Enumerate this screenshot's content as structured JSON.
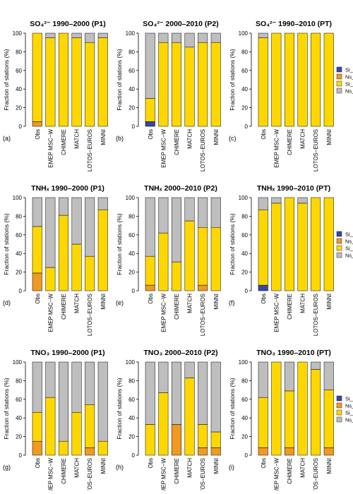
{
  "colors": {
    "Si_In": "#3747a8",
    "Ns_In": "#f09a22",
    "Si_De": "#ffd700",
    "Ns_De": "#bebebe"
  },
  "chart_data": [
    {
      "type": "bar",
      "stacked": true,
      "panel_label": "(a)",
      "title": "SO₄²⁻ 1990–2000 (P1)",
      "ylabel": "Fraction of stations (%)",
      "ylim": [
        0,
        100
      ],
      "yticks": [
        "0",
        "20",
        "40",
        "60",
        "80",
        "100"
      ],
      "categories": [
        "Obs",
        "EMEP MSC−W",
        "CHIMERE",
        "MATCH",
        "LOTOS−EUROS",
        "MINNI"
      ],
      "series": [
        {
          "name": "Si_In",
          "values": [
            0,
            0,
            0,
            0,
            0,
            0
          ]
        },
        {
          "name": "Ns_In",
          "values": [
            5,
            0,
            0,
            0,
            0,
            0
          ]
        },
        {
          "name": "Si_De",
          "values": [
            95,
            95,
            100,
            95,
            90,
            95
          ]
        },
        {
          "name": "Ns_De",
          "values": [
            0,
            5,
            0,
            5,
            10,
            5
          ]
        }
      ]
    },
    {
      "type": "bar",
      "stacked": true,
      "panel_label": "(b)",
      "title": "SO₄²⁻ 2000–2010 (P2)",
      "ylabel": "Fraction of stations (%)",
      "ylim": [
        0,
        100
      ],
      "yticks": [
        "0",
        "20",
        "40",
        "60",
        "80",
        "100"
      ],
      "categories": [
        "Obs",
        "EMEP MSC−W",
        "CHIMERE",
        "MATCH",
        "LOTOS−EUROS",
        "MINNI"
      ],
      "series": [
        {
          "name": "Si_In",
          "values": [
            5,
            0,
            0,
            0,
            0,
            0
          ]
        },
        {
          "name": "Ns_In",
          "values": [
            0,
            0,
            0,
            0,
            0,
            0
          ]
        },
        {
          "name": "Si_De",
          "values": [
            25,
            90,
            90,
            85,
            90,
            90
          ]
        },
        {
          "name": "Ns_De",
          "values": [
            70,
            10,
            10,
            15,
            10,
            10
          ]
        }
      ]
    },
    {
      "type": "bar",
      "stacked": true,
      "panel_label": "(c)",
      "title": "SO₄²⁻ 1990–2010 (PT)",
      "ylabel": "Fraction of stations (%)",
      "ylim": [
        0,
        100
      ],
      "yticks": [
        "0",
        "20",
        "40",
        "60",
        "80",
        "100"
      ],
      "categories": [
        "Obs",
        "EMEP MSC−W",
        "CHIMERE",
        "MATCH",
        "LOTOS−EUROS",
        "MINNI"
      ],
      "legend": [
        "Si_In",
        "Ns_In",
        "Si_De",
        "Ns_De"
      ],
      "series": [
        {
          "name": "Si_In",
          "values": [
            0,
            0,
            0,
            0,
            0,
            0
          ]
        },
        {
          "name": "Ns_In",
          "values": [
            0,
            0,
            0,
            0,
            0,
            0
          ]
        },
        {
          "name": "Si_De",
          "values": [
            95,
            100,
            100,
            100,
            100,
            100
          ]
        },
        {
          "name": "Ns_De",
          "values": [
            5,
            0,
            0,
            0,
            0,
            0
          ]
        }
      ]
    },
    {
      "type": "bar",
      "stacked": true,
      "panel_label": "(d)",
      "title": "TNHₓ 1990–2000 (P1)",
      "ylabel": "Fraction of stations (%)",
      "ylim": [
        0,
        100
      ],
      "yticks": [
        "0",
        "20",
        "40",
        "60",
        "80",
        "100"
      ],
      "categories": [
        "Obs",
        "EMEP MSC−W",
        "CHIMERE",
        "MATCH",
        "LOTOS−EUROS",
        "MINNI"
      ],
      "series": [
        {
          "name": "Si_In",
          "values": [
            0,
            0,
            0,
            0,
            0,
            0
          ]
        },
        {
          "name": "Ns_In",
          "values": [
            19,
            0,
            0,
            0,
            0,
            0
          ]
        },
        {
          "name": "Si_De",
          "values": [
            50,
            25,
            81,
            50,
            37,
            87
          ]
        },
        {
          "name": "Ns_De",
          "values": [
            31,
            75,
            19,
            50,
            63,
            13
          ]
        }
      ]
    },
    {
      "type": "bar",
      "stacked": true,
      "panel_label": "(e)",
      "title": "TNHₓ 2000–2010 (P2)",
      "ylabel": "Fraction of stations (%)",
      "ylim": [
        0,
        100
      ],
      "yticks": [
        "0",
        "20",
        "40",
        "60",
        "80",
        "100"
      ],
      "categories": [
        "Obs",
        "EMEP MSC−W",
        "CHIMERE",
        "MATCH",
        "LOTOS−EUROS",
        "MINNI"
      ],
      "series": [
        {
          "name": "Si_In",
          "values": [
            0,
            0,
            0,
            0,
            0,
            0
          ]
        },
        {
          "name": "Ns_In",
          "values": [
            6,
            0,
            0,
            0,
            6,
            0
          ]
        },
        {
          "name": "Si_De",
          "values": [
            31,
            62,
            31,
            75,
            62,
            68
          ]
        },
        {
          "name": "Ns_De",
          "values": [
            63,
            38,
            69,
            25,
            32,
            32
          ]
        }
      ]
    },
    {
      "type": "bar",
      "stacked": true,
      "panel_label": "(f)",
      "title": "TNHₓ 1990–2010 (PT)",
      "ylabel": "Fraction of stations (%)",
      "ylim": [
        0,
        100
      ],
      "yticks": [
        "0",
        "20",
        "40",
        "60",
        "80",
        "100"
      ],
      "categories": [
        "Obs",
        "EMEP MSC−W",
        "CHIMERE",
        "MATCH",
        "LOTOS−EUROS",
        "MINNI"
      ],
      "legend": [
        "Si_In",
        "Ns_In",
        "Si_De",
        "Ns_De"
      ],
      "series": [
        {
          "name": "Si_In",
          "values": [
            6,
            0,
            0,
            0,
            0,
            0
          ]
        },
        {
          "name": "Ns_In",
          "values": [
            0,
            0,
            0,
            0,
            0,
            0
          ]
        },
        {
          "name": "Si_De",
          "values": [
            81,
            94,
            100,
            94,
            100,
            100
          ]
        },
        {
          "name": "Ns_De",
          "values": [
            13,
            6,
            0,
            6,
            0,
            0
          ]
        }
      ]
    },
    {
      "type": "bar",
      "stacked": true,
      "panel_label": "(g)",
      "title": "TNO₃ 1990–2000 (P1)",
      "ylabel": "Fraction of stations (%)",
      "ylim": [
        0,
        100
      ],
      "yticks": [
        "0",
        "20",
        "40",
        "60",
        "80",
        "100"
      ],
      "categories": [
        "Obs",
        "EMEP MSC−W",
        "CHIMERE",
        "MATCH",
        "LOTOS−EUROS",
        "MINNI"
      ],
      "series": [
        {
          "name": "Si_In",
          "values": [
            0,
            0,
            0,
            0,
            0,
            0
          ]
        },
        {
          "name": "Ns_In",
          "values": [
            15,
            0,
            0,
            0,
            8,
            0
          ]
        },
        {
          "name": "Si_De",
          "values": [
            31,
            62,
            15,
            46,
            46,
            15
          ]
        },
        {
          "name": "Ns_De",
          "values": [
            54,
            38,
            85,
            54,
            46,
            85
          ]
        }
      ]
    },
    {
      "type": "bar",
      "stacked": true,
      "panel_label": "(h)",
      "title": "TNO₃ 2000–2010 (P2)",
      "ylabel": "Fraction of stations (%)",
      "ylim": [
        0,
        100
      ],
      "yticks": [
        "0",
        "20",
        "40",
        "60",
        "80",
        "100"
      ],
      "categories": [
        "Obs",
        "EMEP MSC−W",
        "CHIMERE",
        "MATCH",
        "LOTOS−EUROS",
        "MINNI"
      ],
      "series": [
        {
          "name": "Si_In",
          "values": [
            0,
            0,
            0,
            0,
            0,
            0
          ]
        },
        {
          "name": "Ns_In",
          "values": [
            0,
            0,
            33,
            0,
            8,
            8
          ]
        },
        {
          "name": "Si_De",
          "values": [
            33,
            67,
            0,
            83,
            25,
            17
          ]
        },
        {
          "name": "Ns_De",
          "values": [
            67,
            33,
            67,
            17,
            67,
            75
          ]
        }
      ]
    },
    {
      "type": "bar",
      "stacked": true,
      "panel_label": "(i)",
      "title": "TNO₃ 1990–2010 (PT)",
      "ylabel": "Fraction of stations (%)",
      "ylim": [
        0,
        100
      ],
      "yticks": [
        "0",
        "20",
        "40",
        "60",
        "80",
        "100"
      ],
      "categories": [
        "Obs",
        "EMEP MSC−W",
        "CHIMERE",
        "MATCH",
        "LOTOS−EUROS",
        "MINNI"
      ],
      "legend": [
        "Si_In",
        "Ns_In",
        "Si_De",
        "Ns_De"
      ],
      "series": [
        {
          "name": "Si_In",
          "values": [
            0,
            0,
            0,
            0,
            0,
            0
          ]
        },
        {
          "name": "Ns_In",
          "values": [
            8,
            0,
            8,
            0,
            0,
            8
          ]
        },
        {
          "name": "Si_De",
          "values": [
            54,
            100,
            61,
            100,
            92,
            62
          ]
        },
        {
          "name": "Ns_De",
          "values": [
            38,
            0,
            31,
            0,
            8,
            30
          ]
        }
      ]
    }
  ]
}
